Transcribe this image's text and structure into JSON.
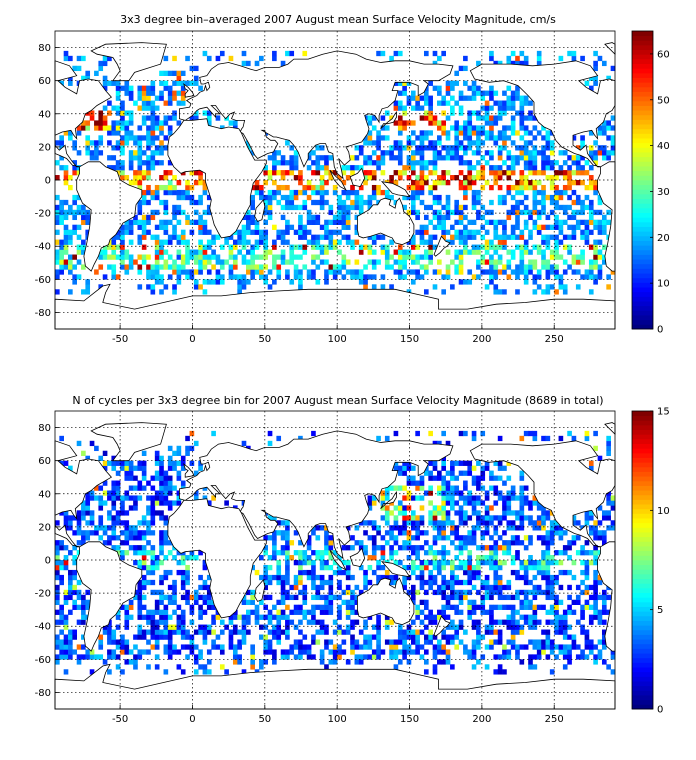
{
  "chart_data": [
    {
      "type": "heatmap",
      "title": "3x3 degree bin–averaged 2007 August mean Surface Velocity Magnitude, cm/s",
      "xlabel": "",
      "ylabel": "",
      "xlim": [
        -95,
        292
      ],
      "ylim": [
        -90,
        90
      ],
      "x_ticks": [
        -50,
        0,
        50,
        100,
        150,
        200,
        250
      ],
      "y_ticks": [
        -80,
        -60,
        -40,
        -20,
        0,
        20,
        40,
        60,
        80
      ],
      "grid": true,
      "bin_size_deg": 3,
      "colorbar": {
        "min": 0,
        "max": 65,
        "ticks": [
          0,
          10,
          20,
          30,
          40,
          50,
          60
        ],
        "colormap": "jet"
      },
      "field": "velocity"
    },
    {
      "type": "heatmap",
      "title": "N of cycles per 3x3 degree bin for 2007 August mean Surface Velocity Magnitude (8689 in total)",
      "xlabel": "",
      "ylabel": "",
      "xlim": [
        -95,
        292
      ],
      "ylim": [
        -90,
        90
      ],
      "x_ticks": [
        -50,
        0,
        50,
        100,
        150,
        200,
        250
      ],
      "y_ticks": [
        -80,
        -60,
        -40,
        -20,
        0,
        20,
        40,
        60,
        80
      ],
      "grid": true,
      "bin_size_deg": 3,
      "total_cycles": 8689,
      "colorbar": {
        "min": 0,
        "max": 15,
        "ticks": [
          0,
          5,
          10,
          15
        ],
        "colormap": "jet"
      },
      "field": "count"
    }
  ]
}
